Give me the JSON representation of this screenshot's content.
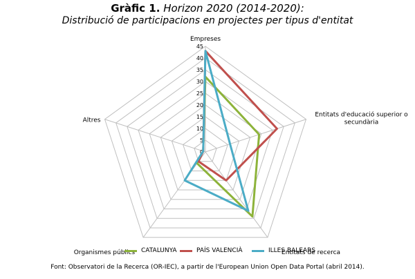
{
  "title": {
    "prefix": "Gràfic 1.",
    "italic": "Horizon 2020 (2014-2020):",
    "subtitle": "Distribució de participacions en projectes per tipus d'entitat"
  },
  "source": "Font: Observatori de la Recerca (OR-IEC), a partir de l'European Union Open Data Portal (abril 2014).",
  "chart_data": {
    "type": "radar",
    "axes": [
      "Empreses",
      "Entitats d'educació superior o secundària",
      "Entitats de recerca",
      "Organismes públics",
      "Altres"
    ],
    "ticks": [
      0,
      5,
      10,
      15,
      20,
      25,
      30,
      35,
      40,
      45
    ],
    "range": [
      0,
      45
    ],
    "grid": true,
    "legend_position": "bottom",
    "series": [
      {
        "name": "CATALUNYA",
        "color": "#8db33a",
        "values": [
          32,
          24,
          34,
          6,
          1
        ]
      },
      {
        "name": "PAÍS VALENCIÀ",
        "color": "#c0504d",
        "values": [
          43,
          32,
          15,
          5,
          1
        ]
      },
      {
        "name": "ILLES BALEARS",
        "color": "#4bacc6",
        "values": [
          43,
          11,
          31,
          15,
          1
        ]
      }
    ]
  }
}
